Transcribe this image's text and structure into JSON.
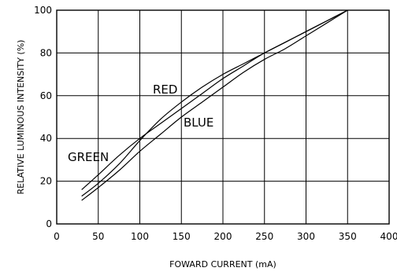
{
  "chart_data": {
    "type": "line",
    "title": "",
    "xlabel": "FOWARD CURRENT (mA)",
    "ylabel": "RELATIVE LUMINOUS INTENSITY (%)",
    "xlim": [
      0,
      400
    ],
    "ylim": [
      0,
      100
    ],
    "xticks": [
      "0",
      "50",
      "100",
      "150",
      "200",
      "250",
      "300",
      "350",
      "400"
    ],
    "yticks": [
      "0",
      "20",
      "40",
      "60",
      "80",
      "100"
    ],
    "grid": true,
    "series": [
      {
        "name": "RED",
        "x": [
          30,
          50,
          75,
          100,
          125,
          150,
          175,
          200,
          225,
          250,
          275,
          300,
          325,
          350
        ],
        "y": [
          13,
          19,
          28,
          39,
          49,
          57,
          64,
          70,
          75,
          80,
          85,
          90,
          95,
          100
        ]
      },
      {
        "name": "GREEN",
        "x": [
          30,
          50,
          75,
          100,
          125,
          150,
          175,
          200,
          225,
          250,
          275,
          300,
          325,
          350
        ],
        "y": [
          16,
          23,
          32,
          40,
          47,
          54,
          61,
          68,
          74,
          80,
          85,
          90,
          95,
          100
        ]
      },
      {
        "name": "BLUE",
        "x": [
          30,
          50,
          75,
          100,
          125,
          150,
          175,
          200,
          225,
          250,
          275,
          300,
          325,
          350
        ],
        "y": [
          11,
          17,
          25,
          34,
          42,
          50,
          57,
          64,
          71,
          77,
          82,
          88,
          94,
          100
        ]
      }
    ]
  }
}
